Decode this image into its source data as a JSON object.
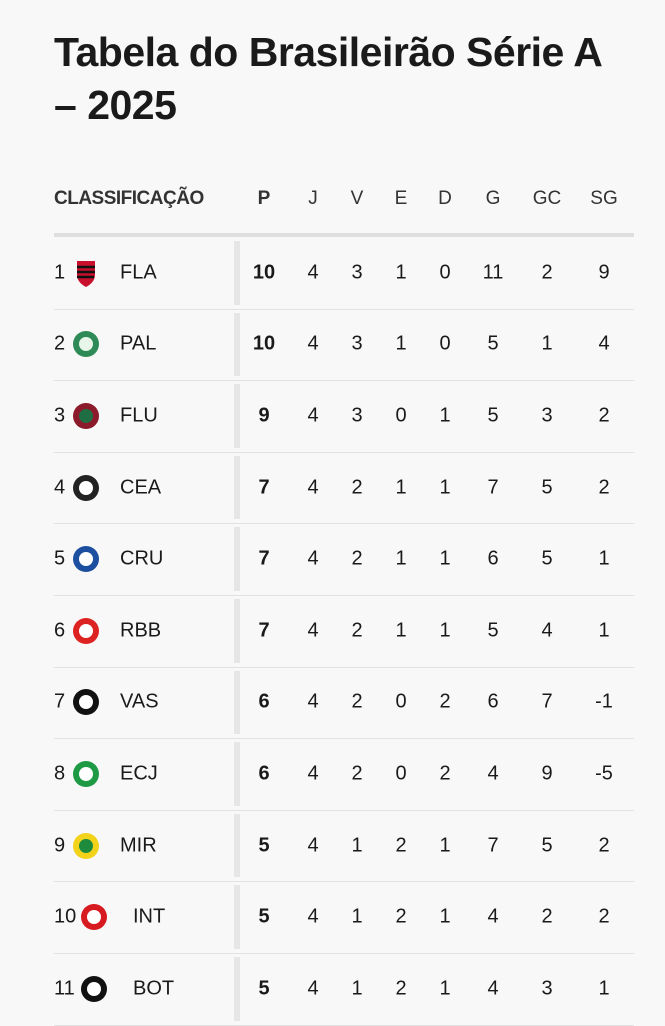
{
  "title": "Tabela do Brasileirão Série A – 2025",
  "columns": {
    "classification": "CLASSIFICAÇÃO",
    "p": "P",
    "j": "J",
    "v": "V",
    "e": "E",
    "d": "D",
    "g": "G",
    "gc": "GC",
    "sg": "SG"
  },
  "rows": [
    {
      "pos": "1",
      "team": "FLA",
      "crest": "flamengo-crest",
      "p": "10",
      "j": "4",
      "v": "3",
      "e": "1",
      "d": "0",
      "g": "11",
      "gc": "2",
      "sg": "9"
    },
    {
      "pos": "2",
      "team": "PAL",
      "crest": "palmeiras-crest",
      "p": "10",
      "j": "4",
      "v": "3",
      "e": "1",
      "d": "0",
      "g": "5",
      "gc": "1",
      "sg": "4"
    },
    {
      "pos": "3",
      "team": "FLU",
      "crest": "fluminense-crest",
      "p": "9",
      "j": "4",
      "v": "3",
      "e": "0",
      "d": "1",
      "g": "5",
      "gc": "3",
      "sg": "2"
    },
    {
      "pos": "4",
      "team": "CEA",
      "crest": "ceara-crest",
      "p": "7",
      "j": "4",
      "v": "2",
      "e": "1",
      "d": "1",
      "g": "7",
      "gc": "5",
      "sg": "2"
    },
    {
      "pos": "5",
      "team": "CRU",
      "crest": "cruzeiro-crest",
      "p": "7",
      "j": "4",
      "v": "2",
      "e": "1",
      "d": "1",
      "g": "6",
      "gc": "5",
      "sg": "1"
    },
    {
      "pos": "6",
      "team": "RBB",
      "crest": "bragantino-crest",
      "p": "7",
      "j": "4",
      "v": "2",
      "e": "1",
      "d": "1",
      "g": "5",
      "gc": "4",
      "sg": "1"
    },
    {
      "pos": "7",
      "team": "VAS",
      "crest": "vasco-crest",
      "p": "6",
      "j": "4",
      "v": "2",
      "e": "0",
      "d": "2",
      "g": "6",
      "gc": "7",
      "sg": "-1"
    },
    {
      "pos": "8",
      "team": "ECJ",
      "crest": "juventude-crest",
      "p": "6",
      "j": "4",
      "v": "2",
      "e": "0",
      "d": "2",
      "g": "4",
      "gc": "9",
      "sg": "-5"
    },
    {
      "pos": "9",
      "team": "MIR",
      "crest": "mirassol-crest",
      "p": "5",
      "j": "4",
      "v": "1",
      "e": "2",
      "d": "1",
      "g": "7",
      "gc": "5",
      "sg": "2"
    },
    {
      "pos": "10",
      "team": "INT",
      "crest": "internacional-crest",
      "p": "5",
      "j": "4",
      "v": "1",
      "e": "2",
      "d": "1",
      "g": "4",
      "gc": "2",
      "sg": "2"
    },
    {
      "pos": "11",
      "team": "BOT",
      "crest": "botafogo-crest",
      "p": "5",
      "j": "4",
      "v": "1",
      "e": "2",
      "d": "1",
      "g": "4",
      "gc": "3",
      "sg": "1"
    }
  ]
}
